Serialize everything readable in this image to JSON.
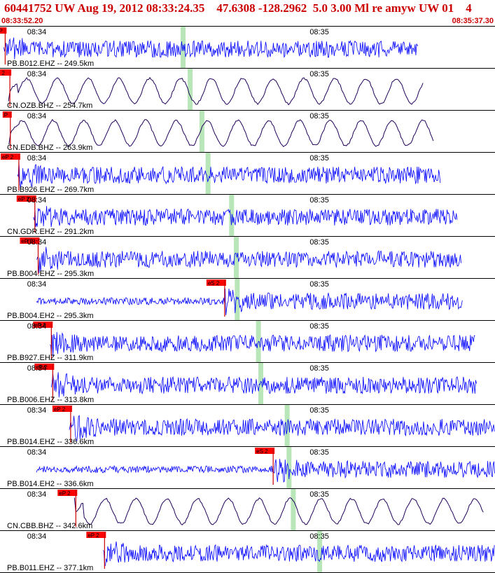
{
  "header": {
    "title": "60441752 UW Aug 19, 2012 08:33:24.35    47.6308 -128.2962  5.0 3.00 Ml re amyw UW 01    4",
    "start_time": "08:33:52.20",
    "end_time": "08:35:37.30"
  },
  "colors": {
    "header_text": "#cc0000",
    "trace_short_period": "#0000ff",
    "trace_broadband": "#20005a",
    "pick_box": "#ff0000",
    "pick_line": "#cc0000",
    "phase_window": "#b8e6b8",
    "separator": "#000000"
  },
  "chart_data": {
    "type": "line",
    "title": "60441752 UW Aug 19, 2012 08:33:24.35    47.6308 -128.2962  5.0 3.00 Ml re amyw UW 01    4",
    "x_axis": {
      "start": "08:33:52.20",
      "end": "08:35:37.30",
      "start_seconds": 52.2,
      "end_seconds": 157.3,
      "tick_labels": [
        "08:34",
        "08:35"
      ],
      "tick_seconds": [
        60,
        120
      ]
    },
    "series": [
      {
        "name": "PB.B012.EHZ -- 249.5km",
        "kind": "short-period",
        "pick_label": "P",
        "pick_seconds": 53.3,
        "trace_end_seconds": 141.0,
        "window_seconds": 91.0
      },
      {
        "name": "CN.OZB.BHZ -- 254.7km",
        "kind": "broadband",
        "pick_label": "P 2",
        "pick_seconds": 54.3,
        "trace_end_seconds": 142.3,
        "window_seconds": 92.5
      },
      {
        "name": "CN.EDB.BHZ -- 263.9km",
        "kind": "broadband",
        "pick_label": "P",
        "pick_seconds": 54.4,
        "trace_end_seconds": 144.3,
        "window_seconds": 95.0
      },
      {
        "name": "PB.B926.EHZ -- 269.7km",
        "kind": "short-period",
        "pick_label": "eP 2",
        "pick_seconds": 56.2,
        "trace_end_seconds": 145.7,
        "window_seconds": 96.3
      },
      {
        "name": "CN.GDR.EHZ -- 291.2km",
        "kind": "short-period",
        "pick_label": "eP 2",
        "pick_seconds": 59.6,
        "trace_end_seconds": 149.4,
        "window_seconds": 101.3
      },
      {
        "name": "PB.B004.EHZ -- 295.3km",
        "kind": "short-period",
        "pick_label": "eP 2",
        "pick_seconds": 60.3,
        "trace_end_seconds": 150.2,
        "window_seconds": 102.3
      },
      {
        "name": "PB.B004.EH2 -- 295.3km",
        "kind": "short-period",
        "pick_label": "eS 2",
        "pick_seconds": 99.9,
        "trace_end_seconds": 150.5,
        "window_seconds": 102.5
      },
      {
        "name": "PB.B927.EHZ -- 311.9km",
        "kind": "short-period",
        "pick_label": "eP 2",
        "pick_seconds": 63.1,
        "trace_end_seconds": 153.2,
        "window_seconds": 107.0
      },
      {
        "name": "PB.B006.EHZ -- 313.8km",
        "kind": "short-period",
        "pick_label": "eP 2",
        "pick_seconds": 63.4,
        "trace_end_seconds": 153.5,
        "window_seconds": 107.5
      },
      {
        "name": "PB.B014.EHZ -- 336.6km",
        "kind": "short-period",
        "pick_label": "eP 2",
        "pick_seconds": 67.2,
        "trace_end_seconds": 157.3,
        "window_seconds": 113.1
      },
      {
        "name": "PB.B014.EH2 -- 336.6km",
        "kind": "short-period",
        "pick_label": "eS 2",
        "pick_seconds": 110.2,
        "trace_end_seconds": 157.3,
        "window_seconds": 113.5
      },
      {
        "name": "CN.CBB.BHZ -- 342.6km",
        "kind": "broadband",
        "pick_label": "eP 2",
        "pick_seconds": 68.3,
        "trace_end_seconds": 155.0,
        "window_seconds": 114.4
      },
      {
        "name": "PB.B011.EHZ -- 377.1km",
        "kind": "short-period",
        "pick_label": "eP 2",
        "pick_seconds": 74.4,
        "trace_end_seconds": 157.3,
        "window_seconds": 120.0
      }
    ],
    "grid": false,
    "legend": "none"
  }
}
